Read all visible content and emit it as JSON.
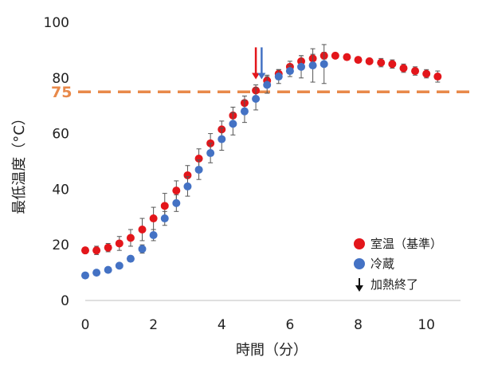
{
  "chart_data": {
    "type": "scatter",
    "xlabel": "時間（分）",
    "ylabel": "最低温度（°C）",
    "xlim": [
      0,
      11
    ],
    "ylim": [
      0,
      100
    ],
    "x_ticks": [
      "0",
      "2",
      "4",
      "6",
      "8",
      "10"
    ],
    "y_ticks": [
      "0",
      "20",
      "40",
      "60",
      "80",
      "100"
    ],
    "grid": false,
    "legend_position": "bottom-right",
    "reference_line": {
      "y": 75,
      "label": "75",
      "color": "#e8894a",
      "style": "dashed"
    },
    "series": [
      {
        "name": "室温（基準）",
        "color": "#e3161b",
        "x": [
          0,
          0.33,
          0.67,
          1,
          1.33,
          1.67,
          2,
          2.33,
          2.67,
          3,
          3.33,
          3.67,
          4,
          4.33,
          4.67,
          5,
          5.33,
          5.67,
          6,
          6.33,
          6.67,
          7,
          7.33,
          7.67,
          8,
          8.33,
          8.67,
          9,
          9.33,
          9.67,
          10,
          10.33
        ],
        "y": [
          18,
          18,
          19,
          20.5,
          22.5,
          25.5,
          29.5,
          34,
          39.5,
          45,
          51,
          56.5,
          61.5,
          66.5,
          71,
          75.5,
          79,
          81.5,
          84,
          86,
          87,
          88,
          88,
          87.5,
          86.5,
          86,
          85.5,
          85,
          83.5,
          82.5,
          81.5,
          80.5
        ],
        "err": [
          1,
          1.5,
          1.5,
          2.5,
          3,
          4,
          4,
          4.5,
          3.5,
          3.5,
          3.5,
          3.5,
          3,
          3,
          2.5,
          2,
          2,
          1.5,
          2,
          2,
          1.5,
          1.2,
          1,
          1,
          1,
          1,
          1.5,
          1.5,
          1.5,
          1.5,
          1.5,
          2
        ]
      },
      {
        "name": "冷蔵",
        "color": "#4472c4",
        "x": [
          0,
          0.33,
          0.67,
          1,
          1.33,
          1.67,
          2,
          2.33,
          2.67,
          3,
          3.33,
          3.67,
          4,
          4.33,
          4.67,
          5,
          5.33,
          5.67,
          6,
          6.33,
          6.67,
          7
        ],
        "y": [
          9,
          10,
          11,
          12.5,
          15,
          18.5,
          23.5,
          29.5,
          35,
          41,
          47,
          53,
          58,
          63.5,
          68,
          72.5,
          77.5,
          80.5,
          82.5,
          84,
          84.5,
          85
        ],
        "err": [
          0.5,
          0.5,
          0.5,
          0.5,
          1,
          1.5,
          2,
          2.5,
          3,
          3.5,
          3.5,
          3.5,
          4,
          4,
          4,
          4,
          3,
          2.5,
          2,
          4,
          6,
          7
        ]
      }
    ],
    "markers": [
      {
        "name": "加熱終了",
        "x": 5,
        "color": "#e3161b"
      },
      {
        "name": "加熱終了",
        "x": 5.17,
        "color": "#4472c4"
      }
    ],
    "legend": [
      {
        "label": "室温（基準）",
        "kind": "dot",
        "color": "#e3161b"
      },
      {
        "label": "冷蔵",
        "kind": "dot",
        "color": "#4472c4"
      },
      {
        "label": "加熱終了",
        "kind": "arrow",
        "color": "#111111"
      }
    ]
  }
}
